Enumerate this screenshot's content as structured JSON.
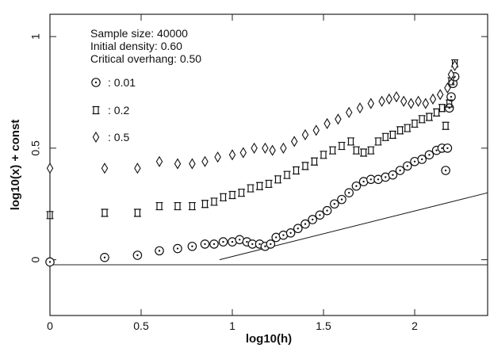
{
  "chart_data": {
    "type": "scatter",
    "xlabel": "log10(h)",
    "ylabel": "log10(x) + const",
    "xlim": [
      0,
      2.4
    ],
    "ylim": [
      -0.25,
      1.1
    ],
    "x_ticks": [
      "0",
      "0.5",
      "1",
      "1.5",
      "2"
    ],
    "y_ticks": [
      "0",
      "0.5",
      "1"
    ],
    "annotations": [
      "Sample size:      40000",
      "Initial density: 0.60",
      "Critical overhang: 0.50"
    ],
    "legend": [
      {
        "symbol": "circle-dot",
        "label": ": 0.01"
      },
      {
        "symbol": "square-bracket",
        "label": ": 0.2"
      },
      {
        "symbol": "diamond",
        "label": ": 0.5"
      }
    ],
    "reference_line": {
      "x": [
        0.93,
        2.4
      ],
      "y": [
        0.0,
        0.3
      ]
    },
    "series": [
      {
        "label": ": 0.01",
        "marker": "circle-dot",
        "points": [
          [
            0.0,
            -0.01
          ],
          [
            0.3,
            0.01
          ],
          [
            0.48,
            0.02
          ],
          [
            0.6,
            0.04
          ],
          [
            0.7,
            0.05
          ],
          [
            0.78,
            0.06
          ],
          [
            0.85,
            0.07
          ],
          [
            0.9,
            0.07
          ],
          [
            0.95,
            0.08
          ],
          [
            1.0,
            0.08
          ],
          [
            1.04,
            0.09
          ],
          [
            1.08,
            0.08
          ],
          [
            1.11,
            0.07
          ],
          [
            1.15,
            0.07
          ],
          [
            1.18,
            0.06
          ],
          [
            1.21,
            0.07
          ],
          [
            1.24,
            0.1
          ],
          [
            1.28,
            0.11
          ],
          [
            1.32,
            0.12
          ],
          [
            1.36,
            0.14
          ],
          [
            1.4,
            0.16
          ],
          [
            1.44,
            0.18
          ],
          [
            1.48,
            0.2
          ],
          [
            1.52,
            0.22
          ],
          [
            1.56,
            0.25
          ],
          [
            1.6,
            0.27
          ],
          [
            1.64,
            0.3
          ],
          [
            1.68,
            0.33
          ],
          [
            1.72,
            0.35
          ],
          [
            1.76,
            0.36
          ],
          [
            1.8,
            0.36
          ],
          [
            1.84,
            0.37
          ],
          [
            1.88,
            0.38
          ],
          [
            1.92,
            0.4
          ],
          [
            1.96,
            0.42
          ],
          [
            2.0,
            0.44
          ],
          [
            2.04,
            0.45
          ],
          [
            2.08,
            0.47
          ],
          [
            2.12,
            0.49
          ],
          [
            2.15,
            0.5
          ],
          [
            2.17,
            0.4
          ],
          [
            2.18,
            0.5
          ],
          [
            2.19,
            0.68
          ],
          [
            2.2,
            0.73
          ],
          [
            2.21,
            0.79
          ],
          [
            2.22,
            0.82
          ]
        ]
      },
      {
        "label": ": 0.2",
        "marker": "square-bracket",
        "points": [
          [
            0.0,
            0.2
          ],
          [
            0.3,
            0.21
          ],
          [
            0.48,
            0.21
          ],
          [
            0.6,
            0.24
          ],
          [
            0.7,
            0.24
          ],
          [
            0.78,
            0.24
          ],
          [
            0.85,
            0.25
          ],
          [
            0.9,
            0.26
          ],
          [
            0.95,
            0.28
          ],
          [
            1.0,
            0.29
          ],
          [
            1.05,
            0.3
          ],
          [
            1.1,
            0.32
          ],
          [
            1.15,
            0.33
          ],
          [
            1.2,
            0.34
          ],
          [
            1.25,
            0.36
          ],
          [
            1.3,
            0.38
          ],
          [
            1.35,
            0.4
          ],
          [
            1.4,
            0.42
          ],
          [
            1.45,
            0.44
          ],
          [
            1.5,
            0.47
          ],
          [
            1.55,
            0.49
          ],
          [
            1.6,
            0.51
          ],
          [
            1.65,
            0.53
          ],
          [
            1.68,
            0.49
          ],
          [
            1.72,
            0.48
          ],
          [
            1.76,
            0.49
          ],
          [
            1.8,
            0.53
          ],
          [
            1.84,
            0.55
          ],
          [
            1.88,
            0.56
          ],
          [
            1.92,
            0.58
          ],
          [
            1.96,
            0.59
          ],
          [
            2.0,
            0.61
          ],
          [
            2.04,
            0.63
          ],
          [
            2.08,
            0.64
          ],
          [
            2.12,
            0.66
          ],
          [
            2.15,
            0.68
          ],
          [
            2.17,
            0.6
          ],
          [
            2.19,
            0.7
          ],
          [
            2.2,
            0.8
          ],
          [
            2.22,
            0.88
          ]
        ]
      },
      {
        "label": ": 0.5",
        "marker": "diamond",
        "points": [
          [
            0.0,
            0.41
          ],
          [
            0.3,
            0.41
          ],
          [
            0.48,
            0.41
          ],
          [
            0.6,
            0.44
          ],
          [
            0.7,
            0.43
          ],
          [
            0.78,
            0.43
          ],
          [
            0.85,
            0.44
          ],
          [
            0.92,
            0.46
          ],
          [
            1.0,
            0.47
          ],
          [
            1.06,
            0.48
          ],
          [
            1.12,
            0.5
          ],
          [
            1.18,
            0.5
          ],
          [
            1.22,
            0.49
          ],
          [
            1.28,
            0.5
          ],
          [
            1.34,
            0.53
          ],
          [
            1.4,
            0.56
          ],
          [
            1.46,
            0.58
          ],
          [
            1.52,
            0.61
          ],
          [
            1.58,
            0.63
          ],
          [
            1.64,
            0.66
          ],
          [
            1.7,
            0.68
          ],
          [
            1.76,
            0.7
          ],
          [
            1.82,
            0.71
          ],
          [
            1.86,
            0.72
          ],
          [
            1.9,
            0.73
          ],
          [
            1.94,
            0.71
          ],
          [
            1.98,
            0.7
          ],
          [
            2.02,
            0.71
          ],
          [
            2.06,
            0.7
          ],
          [
            2.1,
            0.72
          ],
          [
            2.14,
            0.74
          ],
          [
            2.18,
            0.77
          ],
          [
            2.2,
            0.83
          ],
          [
            2.22,
            0.87
          ]
        ]
      }
    ]
  }
}
